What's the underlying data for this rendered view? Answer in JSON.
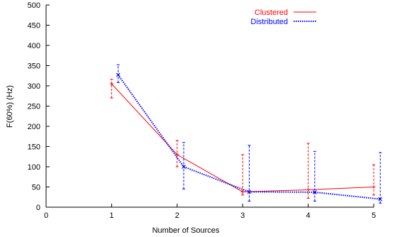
{
  "chart_data": {
    "type": "line",
    "title": "",
    "xlabel": "Number of Sources",
    "ylabel": "F(60%) (Hz)",
    "xlim": [
      0,
      5
    ],
    "ylim": [
      0,
      500
    ],
    "xticks": [
      0,
      1,
      2,
      3,
      4,
      5
    ],
    "yticks": [
      0,
      50,
      100,
      150,
      200,
      250,
      300,
      350,
      400,
      450,
      500
    ],
    "grid": false,
    "legend_position": "top-right",
    "series": [
      {
        "name": "Clustered",
        "color": "#ff0000",
        "line_style": "solid",
        "marker": "plus",
        "points": [
          {
            "x": 1,
            "y": 305,
            "low": 270,
            "high": 316
          },
          {
            "x": 2,
            "y": 130,
            "low": 100,
            "high": 165
          },
          {
            "x": 3,
            "y": 38,
            "low": 30,
            "high": 130
          },
          {
            "x": 4,
            "y": 43,
            "low": 22,
            "high": 158
          },
          {
            "x": 5,
            "y": 50,
            "low": 30,
            "high": 105
          }
        ]
      },
      {
        "name": "Distributed",
        "color": "#0000ff",
        "line_style": "dotted",
        "marker": "x",
        "points": [
          {
            "x": 1.1,
            "y": 327,
            "low": 308,
            "high": 352
          },
          {
            "x": 2.1,
            "y": 100,
            "low": 45,
            "high": 160
          },
          {
            "x": 3.1,
            "y": 38,
            "low": 15,
            "high": 153
          },
          {
            "x": 4.1,
            "y": 37,
            "low": 15,
            "high": 138
          },
          {
            "x": 5.1,
            "y": 20,
            "low": 10,
            "high": 135
          }
        ]
      }
    ]
  }
}
